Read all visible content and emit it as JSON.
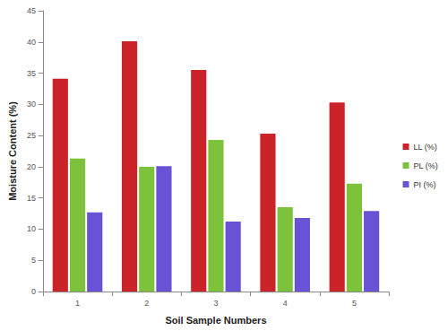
{
  "chart_data": {
    "type": "bar",
    "x_label": "Soil Sample Numbers",
    "y_label": "Moisture Content (%)",
    "categories": [
      "1",
      "2",
      "3",
      "4",
      "5"
    ],
    "series": [
      {
        "name": "LL (%)",
        "color": "#cc2229",
        "values": [
          34.1,
          40.1,
          35.5,
          25.3,
          30.3
        ]
      },
      {
        "name": "PL (%)",
        "color": "#7cc23a",
        "values": [
          21.3,
          20.0,
          24.3,
          13.5,
          17.3
        ]
      },
      {
        "name": "PI (%)",
        "color": "#6a52d6",
        "values": [
          12.7,
          20.1,
          11.2,
          11.8,
          12.9
        ]
      }
    ],
    "ylim": [
      0,
      45
    ],
    "yticks": [
      0,
      5,
      10,
      15,
      20,
      25,
      30,
      35,
      40,
      45
    ],
    "grid": false,
    "legend": "right"
  }
}
